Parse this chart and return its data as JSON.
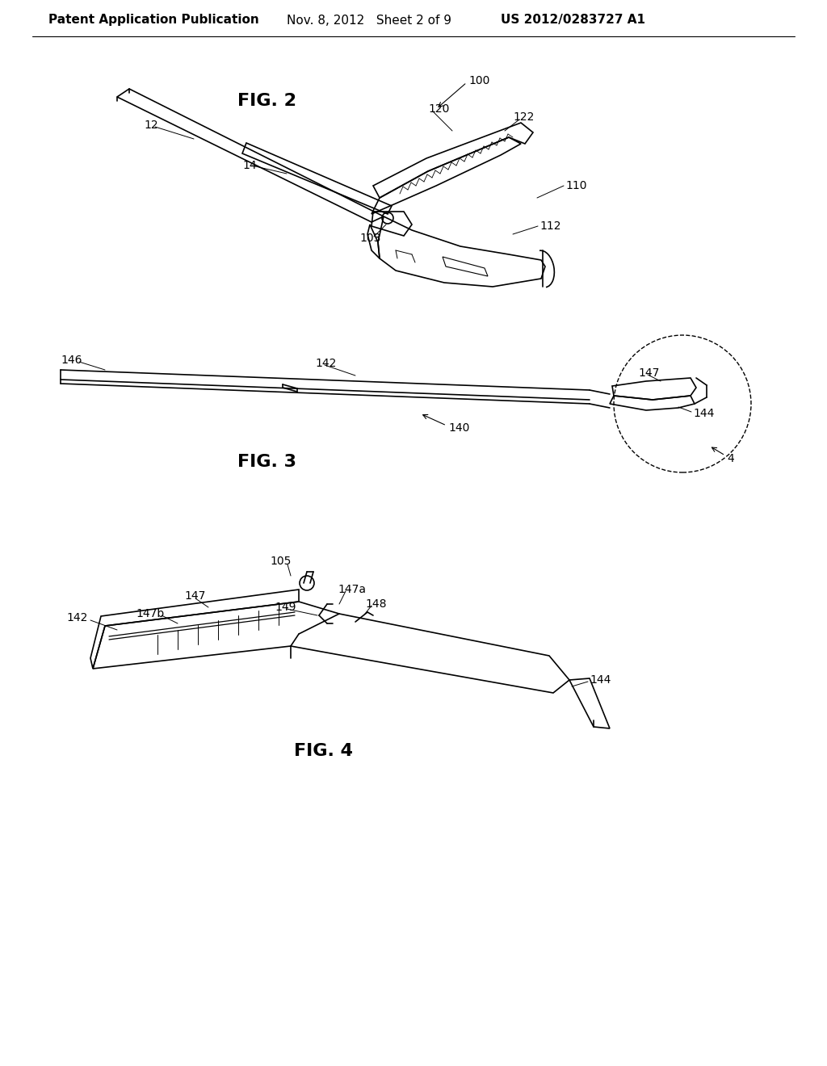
{
  "bg_color": "#ffffff",
  "header_left": "Patent Application Publication",
  "header_mid": "Nov. 8, 2012   Sheet 2 of 9",
  "header_right": "US 2012/0283727 A1",
  "header_fontsize": 11,
  "fig2_label": "FIG. 2",
  "fig3_label": "FIG. 3",
  "fig4_label": "FIG. 4",
  "label_fontsize": 16,
  "anno_fontsize": 10,
  "line_color": "#000000",
  "lw": 1.2
}
